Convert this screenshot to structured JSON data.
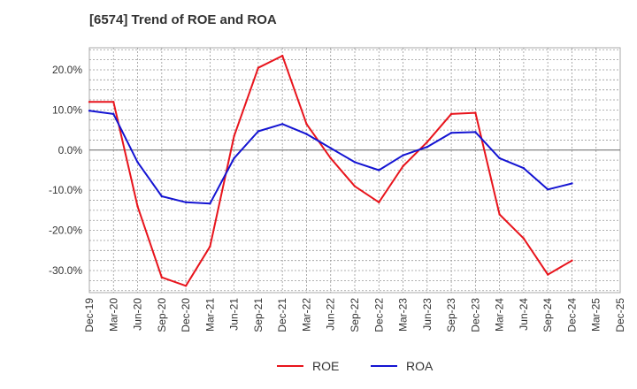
{
  "chart_data": {
    "type": "line",
    "title": "[6574]  Trend of ROE and ROA",
    "xlabel": "",
    "ylabel": "",
    "categories": [
      "Dec-19",
      "Mar-20",
      "Jun-20",
      "Sep-20",
      "Dec-20",
      "Mar-21",
      "Jun-21",
      "Sep-21",
      "Dec-21",
      "Mar-22",
      "Jun-22",
      "Sep-22",
      "Dec-22",
      "Mar-23",
      "Jun-23",
      "Sep-23",
      "Dec-23",
      "Mar-24",
      "Jun-24",
      "Sep-24",
      "Dec-24",
      "Mar-25",
      "Dec-25"
    ],
    "series": [
      {
        "name": "ROE",
        "color": "#e8141c",
        "values": [
          12.0,
          12.0,
          -14.0,
          -31.7,
          -33.8,
          -24.0,
          3.5,
          20.5,
          23.5,
          6.5,
          -2.0,
          -9.0,
          -13.0,
          -4.0,
          2.0,
          9.0,
          9.3,
          -16.0,
          -22.0,
          -31.0,
          -27.5,
          null,
          null
        ]
      },
      {
        "name": "ROA",
        "color": "#1414d2",
        "values": [
          9.8,
          9.0,
          -3.0,
          -11.5,
          -13.0,
          -13.3,
          -2.0,
          4.7,
          6.5,
          4.0,
          0.5,
          -3.0,
          -5.0,
          -1.3,
          0.8,
          4.3,
          4.5,
          -2.0,
          -4.5,
          -9.8,
          -8.3,
          null,
          null
        ]
      }
    ],
    "y_ticks": [
      "20.0%",
      "10.0%",
      "0.0%",
      "-10.0%",
      "-20.0%",
      "-30.0%"
    ],
    "y_tick_values": [
      20,
      10,
      0,
      -10,
      -20,
      -30
    ],
    "ylim": [
      -35.5,
      25.5
    ],
    "grid": true,
    "legend_placement": "bottom-center"
  }
}
